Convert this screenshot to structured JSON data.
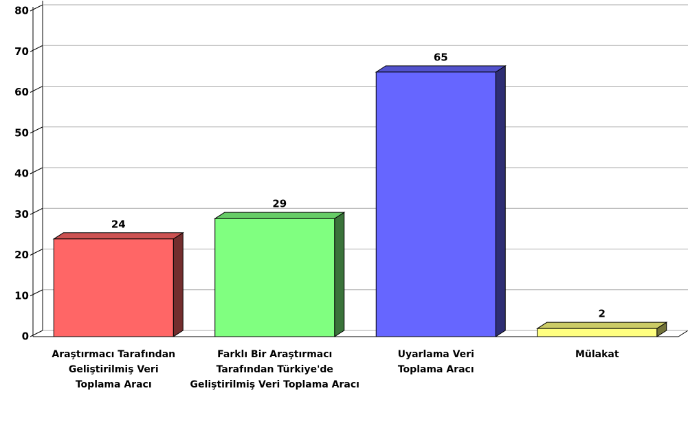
{
  "chart_data": {
    "type": "bar3d",
    "categories": [
      "Araştırmacı Tarafından Geliştirilmiş Veri Toplama Aracı",
      "Farklı Bir Araştırmacı Tarafından Türkiye'de Geliştirilmiş Veri Toplama Aracı",
      "Uyarlama Veri Toplama Aracı",
      "Mülakat"
    ],
    "values": [
      24,
      29,
      65,
      2
    ],
    "colors": [
      "#ff6666",
      "#80ff80",
      "#6666ff",
      "#ffff80"
    ],
    "ylim": [
      0,
      80
    ],
    "yticks": [
      0,
      10,
      20,
      30,
      40,
      50,
      60,
      70,
      80
    ],
    "grid": true
  }
}
